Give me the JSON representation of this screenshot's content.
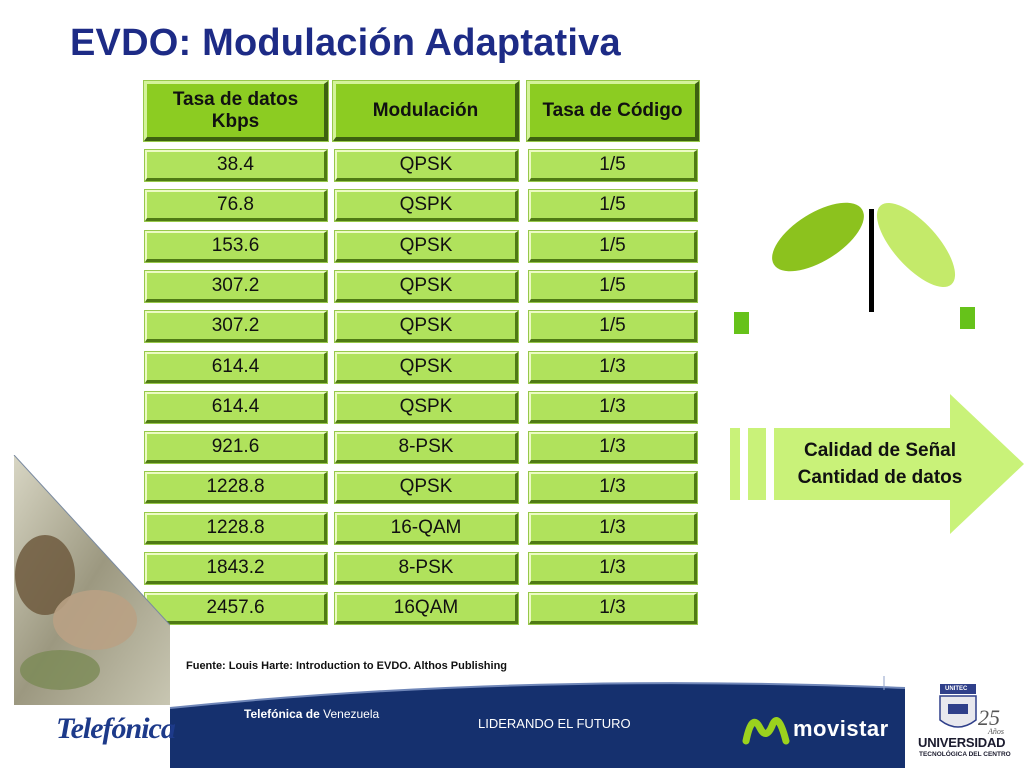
{
  "slide": {
    "title": "EVDO: Modulación Adaptativa",
    "source_note": "Fuente: Louis Harte: Introduction to EVDO.  Althos Publishing"
  },
  "table": {
    "headers": {
      "rate_line1": "Tasa de datos",
      "rate_line2": "Kbps",
      "modulation": "Modulación",
      "code_rate": "Tasa de Código"
    },
    "rows": [
      {
        "rate": "38.4",
        "modulation": "QPSK",
        "code": "1/5"
      },
      {
        "rate": "76.8",
        "modulation": "QSPK",
        "code": "1/5"
      },
      {
        "rate": "153.6",
        "modulation": "QPSK",
        "code": "1/5"
      },
      {
        "rate": "307.2",
        "modulation": "QPSK",
        "code": "1/5"
      },
      {
        "rate": "307.2",
        "modulation": "QPSK",
        "code": "1/5"
      },
      {
        "rate": "614.4",
        "modulation": "QPSK",
        "code": "1/3"
      },
      {
        "rate": "614.4",
        "modulation": "QSPK",
        "code": "1/3"
      },
      {
        "rate": "921.6",
        "modulation": "8-PSK",
        "code": "1/3"
      },
      {
        "rate": "1228.8",
        "modulation": "QPSK",
        "code": "1/3"
      },
      {
        "rate": "1228.8",
        "modulation": "16-QAM",
        "code": "1/3"
      },
      {
        "rate": "1843.2",
        "modulation": "8-PSK",
        "code": "1/3"
      },
      {
        "rate": "2457.6",
        "modulation": "16QAM",
        "code": "1/3"
      }
    ]
  },
  "arrow": {
    "line1": "Calidad de Señal",
    "line2": "Cantidad de datos"
  },
  "footer": {
    "company_bold": "Telefónica de",
    "company_rest": " Venezuela",
    "slogan": "LIDERANDO EL FUTURO",
    "telefonica_logo": "Telefónica",
    "movistar_logo": "movistar",
    "university_badge": "UNITEC",
    "university_name": "UNIVERSIDAD",
    "university_sub": "TECNOLÓGICA DEL CENTRO",
    "anniversary_number": "25",
    "anniversary_word": "Años"
  },
  "colors": {
    "title": "#1d2b86",
    "cell_green": "#b0e25c",
    "header_green": "#8ccc22",
    "arrow_green": "#c9f279",
    "footer_navy": "#15306e"
  }
}
